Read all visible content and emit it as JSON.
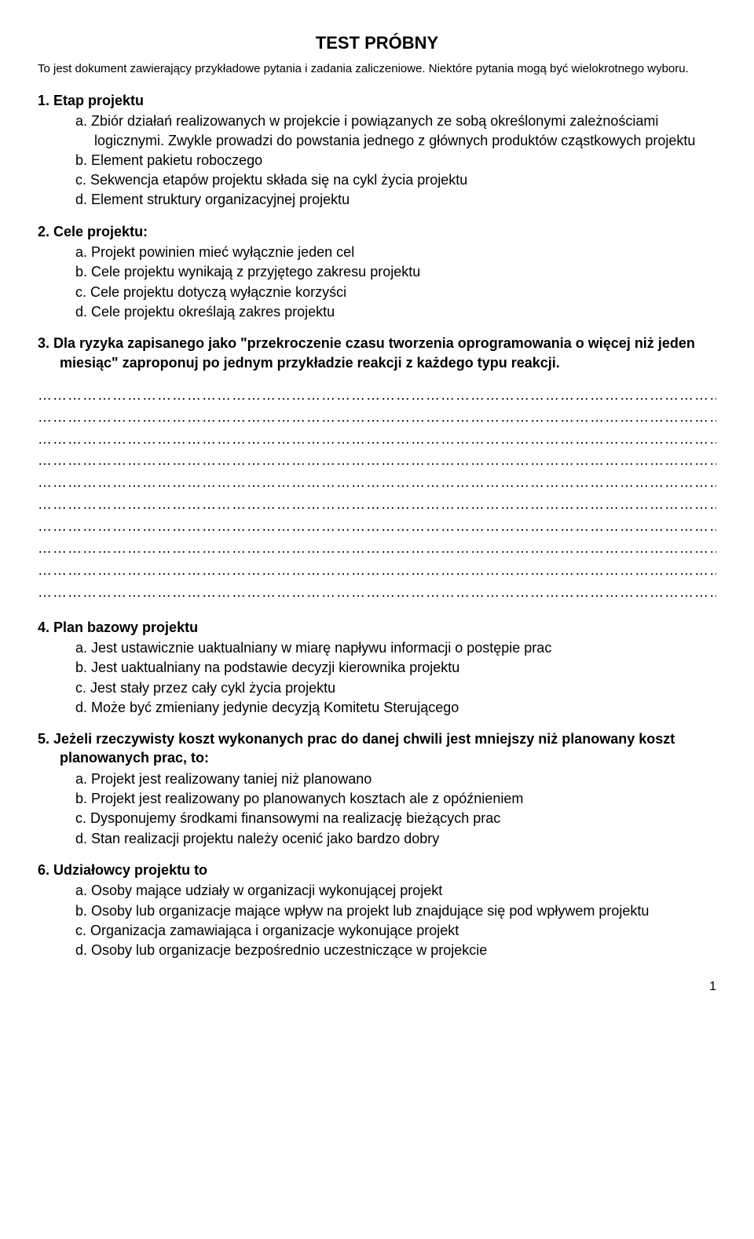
{
  "title": "TEST PRÓBNY",
  "subtitle": "To jest dokument zawierający przykładowe pytania i zadania zaliczeniowe. Niektóre pytania mogą być wielokrotnego wyboru.",
  "page_number": "1",
  "dotted_line_count": 10,
  "questions": [
    {
      "text": "Etap projektu",
      "options": [
        "Zbiór działań realizowanych w projekcie i powiązanych ze sobą określonymi zależnościami logicznymi. Zwykle prowadzi do powstania jednego z głównych produktów cząstkowych projektu",
        "Element pakietu roboczego",
        "Sekwencja etapów projektu składa się na cykl życia projektu",
        "Element struktury organizacyjnej projektu"
      ]
    },
    {
      "text": "Cele projektu:",
      "options": [
        "Projekt powinien mieć wyłącznie jeden cel",
        "Cele projektu wynikają z przyjętego zakresu projektu",
        "Cele projektu dotyczą wyłącznie korzyści",
        "Cele projektu określają zakres projektu"
      ]
    },
    {
      "text": "Dla ryzyka zapisanego jako \"przekroczenie czasu tworzenia oprogramowania o więcej niż jeden miesiąc\" zaproponuj po jednym przykładzie reakcji z każdego typu reakcji.",
      "options": [],
      "dotted": true
    },
    {
      "text": "Plan bazowy projektu",
      "options": [
        "Jest ustawicznie uaktualniany w miarę napływu informacji o postępie prac",
        "Jest uaktualniany na podstawie decyzji kierownika projektu",
        "Jest stały przez cały cykl życia projektu",
        "Może być zmieniany jedynie decyzją Komitetu Sterującego"
      ]
    },
    {
      "text": "Jeżeli rzeczywisty koszt wykonanych prac do danej chwili jest mniejszy niż planowany koszt planowanych prac, to:",
      "options": [
        "Projekt jest realizowany taniej niż planowano",
        "Projekt jest realizowany po planowanych kosztach ale z opóźnieniem",
        "Dysponujemy środkami finansowymi na realizację bieżących prac",
        "Stan realizacji projektu należy ocenić jako bardzo dobry"
      ]
    },
    {
      "text": "Udziałowcy projektu to",
      "options": [
        "Osoby mające udziały w organizacji wykonującej projekt",
        "Osoby lub organizacje mające wpływ na projekt lub znajdujące się pod wpływem projektu",
        "Organizacja zamawiająca i organizacje wykonujące projekt",
        "Osoby lub organizacje bezpośrednio uczestniczące w projekcie"
      ]
    }
  ]
}
